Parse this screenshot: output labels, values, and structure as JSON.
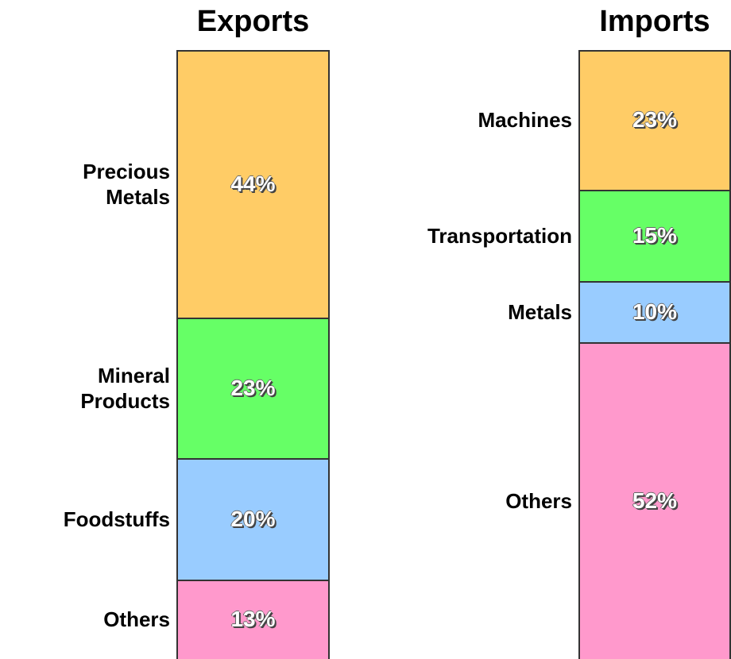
{
  "chart_data": [
    {
      "type": "bar",
      "title": "Exports",
      "categories": [
        "Precious Metals",
        "Mineral Products",
        "Foodstuffs",
        "Others"
      ],
      "values": [
        44,
        23,
        20,
        13
      ],
      "value_labels": [
        "44%",
        "23%",
        "20%",
        "13%"
      ],
      "colors": [
        "#ffcc66",
        "#66ff66",
        "#99ccff",
        "#ff99cc"
      ]
    },
    {
      "type": "bar",
      "title": "Imports",
      "categories": [
        "Machines",
        "Transportation",
        "Metals",
        "Others"
      ],
      "values": [
        23,
        15,
        10,
        52
      ],
      "value_labels": [
        "23%",
        "15%",
        "10%",
        "52%"
      ],
      "colors": [
        "#ffcc66",
        "#66ff66",
        "#99ccff",
        "#ff99cc"
      ]
    }
  ]
}
